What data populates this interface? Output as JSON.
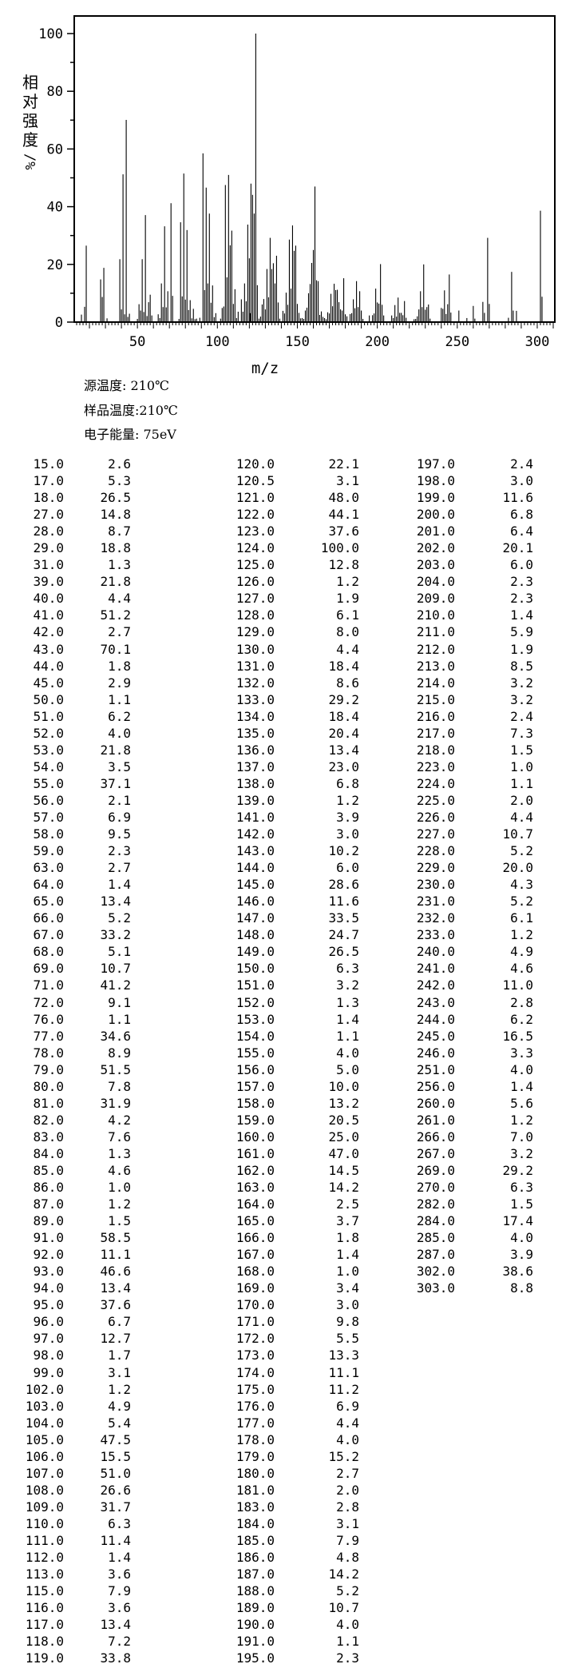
{
  "colors": {
    "foreground": "#000000",
    "background": "#ffffff"
  },
  "chart": {
    "y_axis_label_chars": [
      "相",
      "对",
      "强",
      "度"
    ],
    "y_axis_unit": "/%",
    "x_axis_label": "m/z",
    "y_ticks": [
      0,
      20,
      40,
      60,
      80,
      100
    ],
    "x_ticks": [
      50,
      100,
      150,
      200,
      250,
      300
    ]
  },
  "chart_data": {
    "type": "bar",
    "title": "",
    "xlabel": "m/z",
    "ylabel": "相对强度/%",
    "xlim": [
      10.5,
      311
    ],
    "ylim": [
      0,
      106
    ],
    "grid": false,
    "legend": "none",
    "peaks": [
      [
        15.0,
        2.6
      ],
      [
        17.0,
        5.3
      ],
      [
        18.0,
        26.5
      ],
      [
        27.0,
        14.8
      ],
      [
        28.0,
        8.7
      ],
      [
        29.0,
        18.8
      ],
      [
        31.0,
        1.3
      ],
      [
        39.0,
        21.8
      ],
      [
        40.0,
        4.4
      ],
      [
        41.0,
        51.2
      ],
      [
        42.0,
        2.7
      ],
      [
        43.0,
        70.1
      ],
      [
        44.0,
        1.8
      ],
      [
        45.0,
        2.9
      ],
      [
        50.0,
        1.1
      ],
      [
        51.0,
        6.2
      ],
      [
        52.0,
        4.0
      ],
      [
        53.0,
        21.8
      ],
      [
        54.0,
        3.5
      ],
      [
        55.0,
        37.1
      ],
      [
        56.0,
        2.1
      ],
      [
        57.0,
        6.9
      ],
      [
        58.0,
        9.5
      ],
      [
        59.0,
        2.3
      ],
      [
        63.0,
        2.7
      ],
      [
        64.0,
        1.4
      ],
      [
        65.0,
        13.4
      ],
      [
        66.0,
        5.2
      ],
      [
        67.0,
        33.2
      ],
      [
        68.0,
        5.1
      ],
      [
        69.0,
        10.7
      ],
      [
        71.0,
        41.2
      ],
      [
        72.0,
        9.1
      ],
      [
        76.0,
        1.1
      ],
      [
        77.0,
        34.6
      ],
      [
        78.0,
        8.9
      ],
      [
        79.0,
        51.5
      ],
      [
        80.0,
        7.8
      ],
      [
        81.0,
        31.9
      ],
      [
        82.0,
        4.2
      ],
      [
        83.0,
        7.6
      ],
      [
        84.0,
        1.3
      ],
      [
        85.0,
        4.6
      ],
      [
        86.0,
        1.0
      ],
      [
        87.0,
        1.2
      ],
      [
        89.0,
        1.5
      ],
      [
        91.0,
        58.5
      ],
      [
        92.0,
        11.1
      ],
      [
        93.0,
        46.6
      ],
      [
        94.0,
        13.4
      ],
      [
        95.0,
        37.6
      ],
      [
        96.0,
        6.7
      ],
      [
        97.0,
        12.7
      ],
      [
        98.0,
        1.7
      ],
      [
        99.0,
        3.1
      ],
      [
        102.0,
        1.2
      ],
      [
        103.0,
        4.9
      ],
      [
        104.0,
        5.4
      ],
      [
        105.0,
        47.5
      ],
      [
        106.0,
        15.5
      ],
      [
        107.0,
        51.0
      ],
      [
        108.0,
        26.6
      ],
      [
        109.0,
        31.7
      ],
      [
        110.0,
        6.3
      ],
      [
        111.0,
        11.4
      ],
      [
        112.0,
        1.4
      ],
      [
        113.0,
        3.6
      ],
      [
        115.0,
        7.9
      ],
      [
        116.0,
        3.6
      ],
      [
        117.0,
        13.4
      ],
      [
        118.0,
        7.2
      ],
      [
        119.0,
        33.8
      ],
      [
        120.0,
        22.1
      ],
      [
        120.5,
        3.1
      ],
      [
        121.0,
        48.0
      ],
      [
        122.0,
        44.1
      ],
      [
        123.0,
        37.6
      ],
      [
        124.0,
        100.0
      ],
      [
        125.0,
        12.8
      ],
      [
        126.0,
        1.2
      ],
      [
        127.0,
        1.9
      ],
      [
        128.0,
        6.1
      ],
      [
        129.0,
        8.0
      ],
      [
        130.0,
        4.4
      ],
      [
        131.0,
        18.4
      ],
      [
        132.0,
        8.6
      ],
      [
        133.0,
        29.2
      ],
      [
        134.0,
        18.4
      ],
      [
        135.0,
        20.4
      ],
      [
        136.0,
        13.4
      ],
      [
        137.0,
        23.0
      ],
      [
        138.0,
        6.8
      ],
      [
        139.0,
        1.2
      ],
      [
        141.0,
        3.9
      ],
      [
        142.0,
        3.0
      ],
      [
        143.0,
        10.2
      ],
      [
        144.0,
        6.0
      ],
      [
        145.0,
        28.6
      ],
      [
        146.0,
        11.6
      ],
      [
        147.0,
        33.5
      ],
      [
        148.0,
        24.7
      ],
      [
        149.0,
        26.5
      ],
      [
        150.0,
        6.3
      ],
      [
        151.0,
        3.2
      ],
      [
        152.0,
        1.3
      ],
      [
        153.0,
        1.4
      ],
      [
        154.0,
        1.1
      ],
      [
        155.0,
        4.0
      ],
      [
        156.0,
        5.0
      ],
      [
        157.0,
        10.0
      ],
      [
        158.0,
        13.2
      ],
      [
        159.0,
        20.5
      ],
      [
        160.0,
        25.0
      ],
      [
        161.0,
        47.0
      ],
      [
        162.0,
        14.5
      ],
      [
        163.0,
        14.2
      ],
      [
        164.0,
        2.5
      ],
      [
        165.0,
        3.7
      ],
      [
        166.0,
        1.8
      ],
      [
        167.0,
        1.4
      ],
      [
        168.0,
        1.0
      ],
      [
        169.0,
        3.4
      ],
      [
        170.0,
        3.0
      ],
      [
        171.0,
        9.8
      ],
      [
        172.0,
        5.5
      ],
      [
        173.0,
        13.3
      ],
      [
        174.0,
        11.1
      ],
      [
        175.0,
        11.2
      ],
      [
        176.0,
        6.9
      ],
      [
        177.0,
        4.4
      ],
      [
        178.0,
        4.0
      ],
      [
        179.0,
        15.2
      ],
      [
        180.0,
        2.7
      ],
      [
        181.0,
        2.0
      ],
      [
        183.0,
        2.8
      ],
      [
        184.0,
        3.1
      ],
      [
        185.0,
        7.9
      ],
      [
        186.0,
        4.8
      ],
      [
        187.0,
        14.2
      ],
      [
        188.0,
        5.2
      ],
      [
        189.0,
        10.7
      ],
      [
        190.0,
        4.0
      ],
      [
        191.0,
        1.1
      ],
      [
        195.0,
        2.3
      ],
      [
        197.0,
        2.4
      ],
      [
        198.0,
        3.0
      ],
      [
        199.0,
        11.6
      ],
      [
        200.0,
        6.8
      ],
      [
        201.0,
        6.4
      ],
      [
        202.0,
        20.1
      ],
      [
        203.0,
        6.0
      ],
      [
        204.0,
        2.3
      ],
      [
        209.0,
        2.3
      ],
      [
        210.0,
        1.4
      ],
      [
        211.0,
        5.9
      ],
      [
        212.0,
        1.9
      ],
      [
        213.0,
        8.5
      ],
      [
        214.0,
        3.2
      ],
      [
        215.0,
        3.2
      ],
      [
        216.0,
        2.4
      ],
      [
        217.0,
        7.3
      ],
      [
        218.0,
        1.5
      ],
      [
        223.0,
        1.0
      ],
      [
        224.0,
        1.1
      ],
      [
        225.0,
        2.0
      ],
      [
        226.0,
        4.4
      ],
      [
        227.0,
        10.7
      ],
      [
        228.0,
        5.2
      ],
      [
        229.0,
        20.0
      ],
      [
        230.0,
        4.3
      ],
      [
        231.0,
        5.2
      ],
      [
        232.0,
        6.1
      ],
      [
        233.0,
        1.2
      ],
      [
        240.0,
        4.9
      ],
      [
        241.0,
        4.6
      ],
      [
        242.0,
        11.0
      ],
      [
        243.0,
        2.8
      ],
      [
        244.0,
        6.2
      ],
      [
        245.0,
        16.5
      ],
      [
        246.0,
        3.3
      ],
      [
        251.0,
        4.0
      ],
      [
        256.0,
        1.4
      ],
      [
        260.0,
        5.6
      ],
      [
        261.0,
        1.2
      ],
      [
        266.0,
        7.0
      ],
      [
        267.0,
        3.2
      ],
      [
        269.0,
        29.2
      ],
      [
        270.0,
        6.3
      ],
      [
        282.0,
        1.5
      ],
      [
        284.0,
        17.4
      ],
      [
        285.0,
        4.0
      ],
      [
        287.0,
        3.9
      ],
      [
        302.0,
        38.6
      ],
      [
        303.0,
        8.8
      ]
    ]
  },
  "metadata": {
    "source_temperature": "源温度: 210℃",
    "sample_temperature": "样品温度:210℃",
    "electron_energy": "电子能量: 75eV"
  },
  "table": {
    "column_row_counts": [
      72,
      72,
      50
    ]
  }
}
